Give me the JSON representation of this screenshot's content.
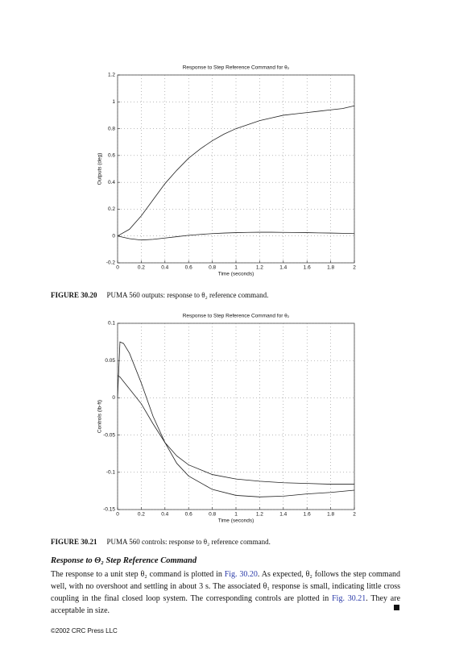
{
  "chart_data": [
    {
      "type": "line",
      "title": "Response to Step Reference Command for θ₂",
      "xlabel": "Time (seconds)",
      "ylabel": "Outputs (deg)",
      "x": [
        0,
        0.1,
        0.2,
        0.3,
        0.4,
        0.5,
        0.6,
        0.7,
        0.8,
        0.9,
        1.0,
        1.1,
        1.2,
        1.3,
        1.4,
        1.5,
        1.6,
        1.7,
        1.8,
        1.9,
        2.0
      ],
      "series": [
        {
          "color": "#222222",
          "values": [
            0,
            0.05,
            0.15,
            0.27,
            0.39,
            0.49,
            0.58,
            0.65,
            0.71,
            0.76,
            0.8,
            0.83,
            0.86,
            0.88,
            0.9,
            0.91,
            0.92,
            0.93,
            0.94,
            0.95,
            0.97
          ]
        },
        {
          "color": "#222222",
          "values": [
            0,
            -0.02,
            -0.03,
            -0.025,
            -0.015,
            -0.005,
            0.005,
            0.012,
            0.018,
            0.022,
            0.025,
            0.027,
            0.028,
            0.028,
            0.027,
            0.026,
            0.025,
            0.023,
            0.022,
            0.02,
            0.018
          ]
        }
      ],
      "xlim": [
        0,
        2
      ],
      "ylim": [
        -0.2,
        1.2
      ],
      "xticks": [
        0,
        0.2,
        0.4,
        0.6,
        0.8,
        1,
        1.2,
        1.4,
        1.6,
        1.8,
        2
      ],
      "yticks": [
        -0.2,
        0,
        0.2,
        0.4,
        0.6,
        0.8,
        1,
        1.2
      ],
      "grid": true
    },
    {
      "type": "line",
      "title": "Response to Step Reference Command for θ₂",
      "xlabel": "Time (seconds)",
      "ylabel": "Controls (lb-ft)",
      "x": [
        0,
        0.02,
        0.05,
        0.1,
        0.15,
        0.2,
        0.3,
        0.4,
        0.5,
        0.6,
        0.8,
        1.0,
        1.2,
        1.4,
        1.6,
        1.8,
        2.0
      ],
      "series": [
        {
          "color": "#222222",
          "values": [
            0,
            0.075,
            0.073,
            0.06,
            0.04,
            0.02,
            -0.025,
            -0.06,
            -0.088,
            -0.105,
            -0.123,
            -0.131,
            -0.133,
            -0.132,
            -0.129,
            -0.127,
            -0.124
          ]
        },
        {
          "color": "#222222",
          "values": [
            0.03,
            0.028,
            0.022,
            0.012,
            0.002,
            -0.008,
            -0.035,
            -0.06,
            -0.078,
            -0.09,
            -0.103,
            -0.109,
            -0.112,
            -0.114,
            -0.115,
            -0.116,
            -0.116
          ]
        }
      ],
      "xlim": [
        0,
        2
      ],
      "ylim": [
        -0.15,
        0.1
      ],
      "xticks": [
        0,
        0.2,
        0.4,
        0.6,
        0.8,
        1,
        1.2,
        1.4,
        1.6,
        1.8,
        2
      ],
      "yticks": [
        -0.15,
        -0.1,
        -0.05,
        0,
        0.05,
        0.1
      ],
      "grid": true
    }
  ],
  "captions": [
    {
      "label": "FIGURE 30.20",
      "text": "PUMA 560 outputs: response to θ₂ reference command."
    },
    {
      "label": "FIGURE 30.21",
      "text": "PUMA 560 controls: response to θ₂ reference command."
    }
  ],
  "section": {
    "heading": "Response to Θ₂ Step Reference Command",
    "paragraph": [
      "The response to a unit step θ₂ command is plotted in ",
      "Fig. 30.20",
      ". As expected, θ₂ follows the step command well, with no overshoot and settling in about 3 s. The associated θ₁ response is small, indicating little cross coupling in the final closed loop system. The corresponding controls are plotted in ",
      "Fig. 30.21",
      ". They are acceptable in size."
    ]
  },
  "footer": "©2002 CRC Press LLC"
}
